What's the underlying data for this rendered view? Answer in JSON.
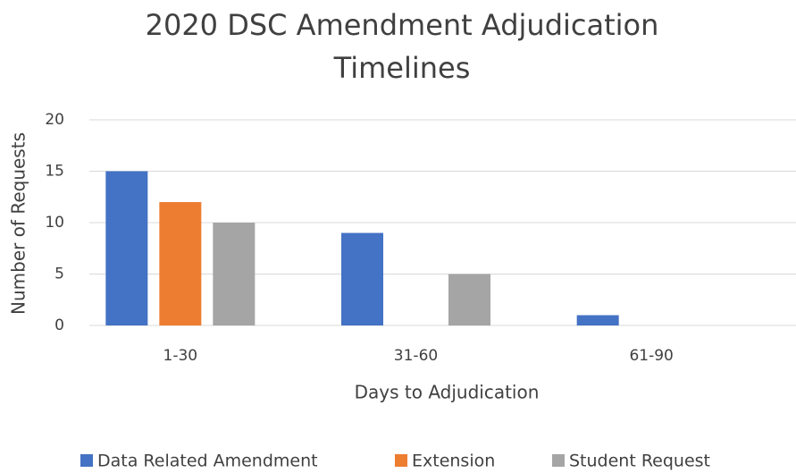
{
  "chart_data": {
    "type": "bar",
    "title": "2020 DSC Amendment Adjudication Timelines",
    "x_label": "Days to Adjudication",
    "y_label": "Number of Requests",
    "categories": [
      "1-30",
      "31-60",
      "61-90"
    ],
    "series": [
      {
        "name": "Data Related Amendment",
        "color": "#4472c4",
        "values": [
          15,
          9,
          1
        ]
      },
      {
        "name": "Extension",
        "color": "#ed7d31",
        "values": [
          12,
          0,
          0
        ]
      },
      {
        "name": "Student Request",
        "color": "#a5a5a5",
        "values": [
          10,
          5,
          0
        ]
      }
    ],
    "ylim": [
      0,
      20
    ],
    "yticks": [
      0,
      5,
      10,
      15,
      20
    ],
    "grid": true,
    "legend": "bottom"
  }
}
